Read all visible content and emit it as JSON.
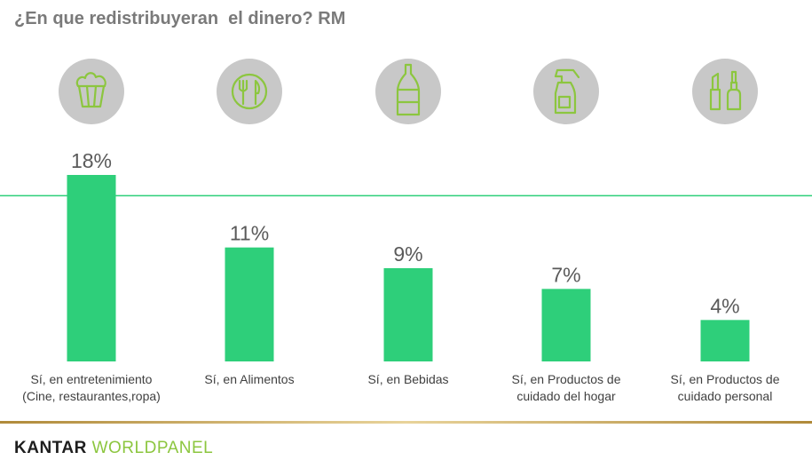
{
  "title": "¿En que redistribuyeran  el dinero? RM",
  "brand": {
    "part1": "KANTAR",
    "part2": "WORLDPANEL"
  },
  "colors": {
    "bar": "#2ecf7a",
    "reference_line": "#2ecf7a",
    "icon_bg": "#c8c8c8",
    "icon_stroke": "#8cc63f"
  },
  "icons": [
    "popcorn-icon",
    "plate-cutlery-icon",
    "bottle-icon",
    "spray-bottle-icon",
    "cosmetics-icon"
  ],
  "chart_data": {
    "type": "bar",
    "categories": [
      [
        "Sí, en entretenimiento",
        "(Cine, restaurantes,ropa)"
      ],
      [
        "Sí, en Alimentos"
      ],
      [
        "Sí, en Bebidas"
      ],
      [
        "Sí, en Productos de",
        "cuidado del hogar"
      ],
      [
        "Sí, en Productos de",
        "cuidado personal"
      ]
    ],
    "values": [
      18,
      11,
      9,
      7,
      4
    ],
    "value_labels": [
      "18%",
      "11%",
      "9%",
      "7%",
      "4%"
    ],
    "reference_line": 16,
    "ylim": [
      0,
      18
    ],
    "grid": false,
    "title": "",
    "xlabel": "",
    "ylabel": ""
  }
}
